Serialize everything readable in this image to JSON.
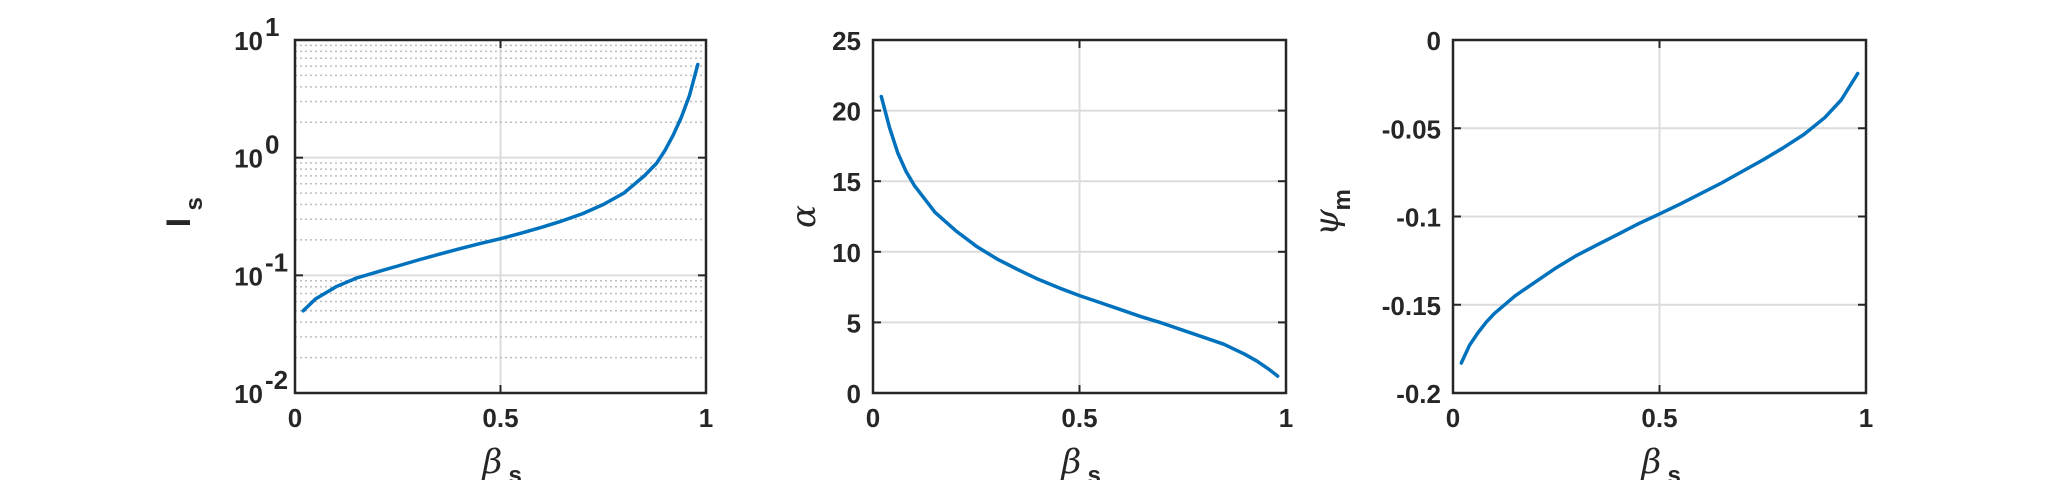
{
  "chart_data": [
    {
      "type": "line",
      "xlabel": {
        "main": "β",
        "sub": "s"
      },
      "ylabel": {
        "main": "I",
        "sub": "s"
      },
      "yscale": "log",
      "xlim": [
        0,
        1
      ],
      "ylim": [
        0.01,
        10
      ],
      "xticks": [
        "0",
        "0.5",
        "1"
      ],
      "yticks": [
        {
          "base": "10",
          "exp": "1",
          "value": 10
        },
        {
          "base": "10",
          "exp": "0",
          "value": 1
        },
        {
          "base": "10",
          "exp": "-1",
          "value": 0.1
        },
        {
          "base": "10",
          "exp": "-2",
          "value": 0.01
        }
      ],
      "grid": "major+minor",
      "color": "#0072bd",
      "x": [
        0.02,
        0.05,
        0.1,
        0.15,
        0.2,
        0.25,
        0.3,
        0.35,
        0.4,
        0.45,
        0.5,
        0.55,
        0.6,
        0.65,
        0.7,
        0.75,
        0.8,
        0.85,
        0.88,
        0.9,
        0.92,
        0.94,
        0.96,
        0.98
      ],
      "y": [
        0.05,
        0.063,
        0.08,
        0.095,
        0.107,
        0.12,
        0.135,
        0.151,
        0.168,
        0.186,
        0.205,
        0.228,
        0.256,
        0.29,
        0.335,
        0.4,
        0.5,
        0.7,
        0.9,
        1.15,
        1.55,
        2.2,
        3.4,
        6.2
      ]
    },
    {
      "type": "line",
      "xlabel": {
        "main": "β",
        "sub": "s"
      },
      "ylabel": {
        "main": "α",
        "sub": ""
      },
      "yscale": "linear",
      "xlim": [
        0,
        1
      ],
      "ylim": [
        0,
        25
      ],
      "xticks": [
        "0",
        "0.5",
        "1"
      ],
      "yticks": [
        "0",
        "5",
        "10",
        "15",
        "20",
        "25"
      ],
      "grid": "major",
      "color": "#0072bd",
      "x": [
        0.02,
        0.04,
        0.06,
        0.08,
        0.1,
        0.15,
        0.2,
        0.25,
        0.3,
        0.35,
        0.4,
        0.45,
        0.5,
        0.55,
        0.6,
        0.65,
        0.7,
        0.75,
        0.8,
        0.85,
        0.9,
        0.93,
        0.96,
        0.98
      ],
      "y": [
        21.0,
        18.8,
        17.0,
        15.7,
        14.7,
        12.8,
        11.5,
        10.4,
        9.5,
        8.75,
        8.05,
        7.45,
        6.9,
        6.4,
        5.9,
        5.4,
        4.95,
        4.45,
        3.95,
        3.45,
        2.75,
        2.25,
        1.65,
        1.2
      ]
    },
    {
      "type": "line",
      "xlabel": {
        "main": "β",
        "sub": "s"
      },
      "ylabel": {
        "main": "ψ",
        "sub": "m"
      },
      "yscale": "linear",
      "xlim": [
        0,
        1
      ],
      "ylim": [
        -0.2,
        0
      ],
      "xticks": [
        "0",
        "0.5",
        "1"
      ],
      "yticks": [
        "0",
        "-0.05",
        "-0.1",
        "-0.15",
        "-0.2"
      ],
      "grid": "major",
      "color": "#0072bd",
      "x": [
        0.02,
        0.04,
        0.06,
        0.08,
        0.1,
        0.15,
        0.2,
        0.25,
        0.3,
        0.35,
        0.4,
        0.45,
        0.5,
        0.55,
        0.6,
        0.65,
        0.7,
        0.75,
        0.8,
        0.85,
        0.9,
        0.94,
        0.98
      ],
      "y": [
        -0.183,
        -0.173,
        -0.166,
        -0.16,
        -0.155,
        -0.145,
        -0.137,
        -0.129,
        -0.122,
        -0.116,
        -0.11,
        -0.104,
        -0.0985,
        -0.093,
        -0.087,
        -0.081,
        -0.0745,
        -0.068,
        -0.061,
        -0.0535,
        -0.044,
        -0.034,
        -0.019
      ]
    }
  ]
}
